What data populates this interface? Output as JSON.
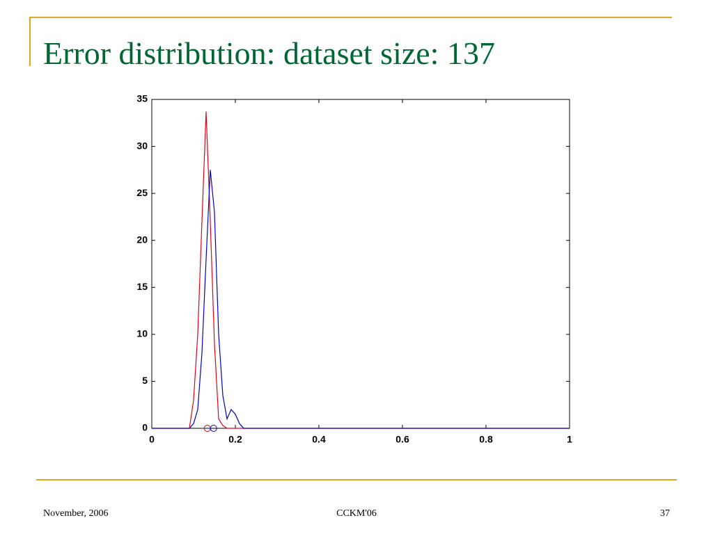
{
  "title": "Error distribution: dataset size: 137",
  "footer": {
    "date": "November, 2006",
    "event": "CCKM'06",
    "page": "37"
  },
  "chart_data": {
    "type": "line",
    "x": [
      0,
      0.09,
      0.1,
      0.11,
      0.12,
      0.13,
      0.14,
      0.15,
      0.16,
      0.17,
      0.18,
      0.19,
      0.2,
      0.21,
      0.22,
      1
    ],
    "series": [
      {
        "color": "#e0001b",
        "values": [
          0,
          0,
          3,
          10,
          22,
          33.7,
          22,
          9,
          1,
          0.3,
          0,
          0,
          0,
          0,
          0,
          0
        ],
        "marker_x": 0.133
      },
      {
        "color": "#0000cc",
        "values": [
          0,
          0,
          0.5,
          2,
          8,
          18,
          27.5,
          23,
          10,
          3.5,
          1,
          2,
          1.5,
          0.5,
          0,
          0
        ],
        "marker_x": 0.148
      }
    ],
    "xlim": [
      0,
      1
    ],
    "xticks": [
      0,
      0.2,
      0.4,
      0.6,
      0.8,
      1
    ],
    "ylim": [
      0,
      35
    ],
    "yticks": [
      0,
      5,
      10,
      15,
      20,
      25,
      30,
      35
    ]
  }
}
